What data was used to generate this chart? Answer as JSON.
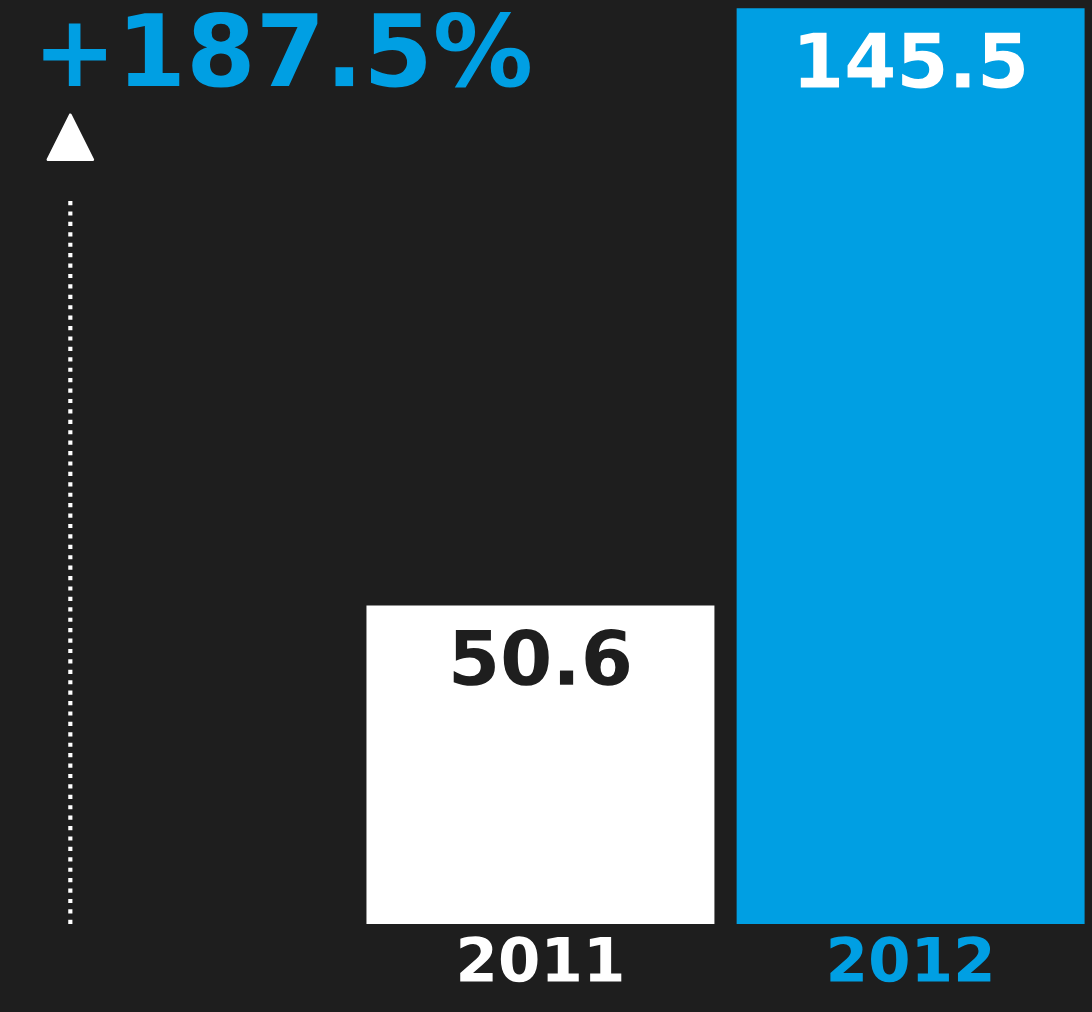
{
  "chart_data": {
    "type": "bar",
    "categories": [
      "2011",
      "2012"
    ],
    "values": [
      50.6,
      145.5
    ],
    "colors": [
      "#ffffff",
      "#009fe3"
    ],
    "data_labels": true,
    "annotations": [
      "+187.5%"
    ]
  }
}
